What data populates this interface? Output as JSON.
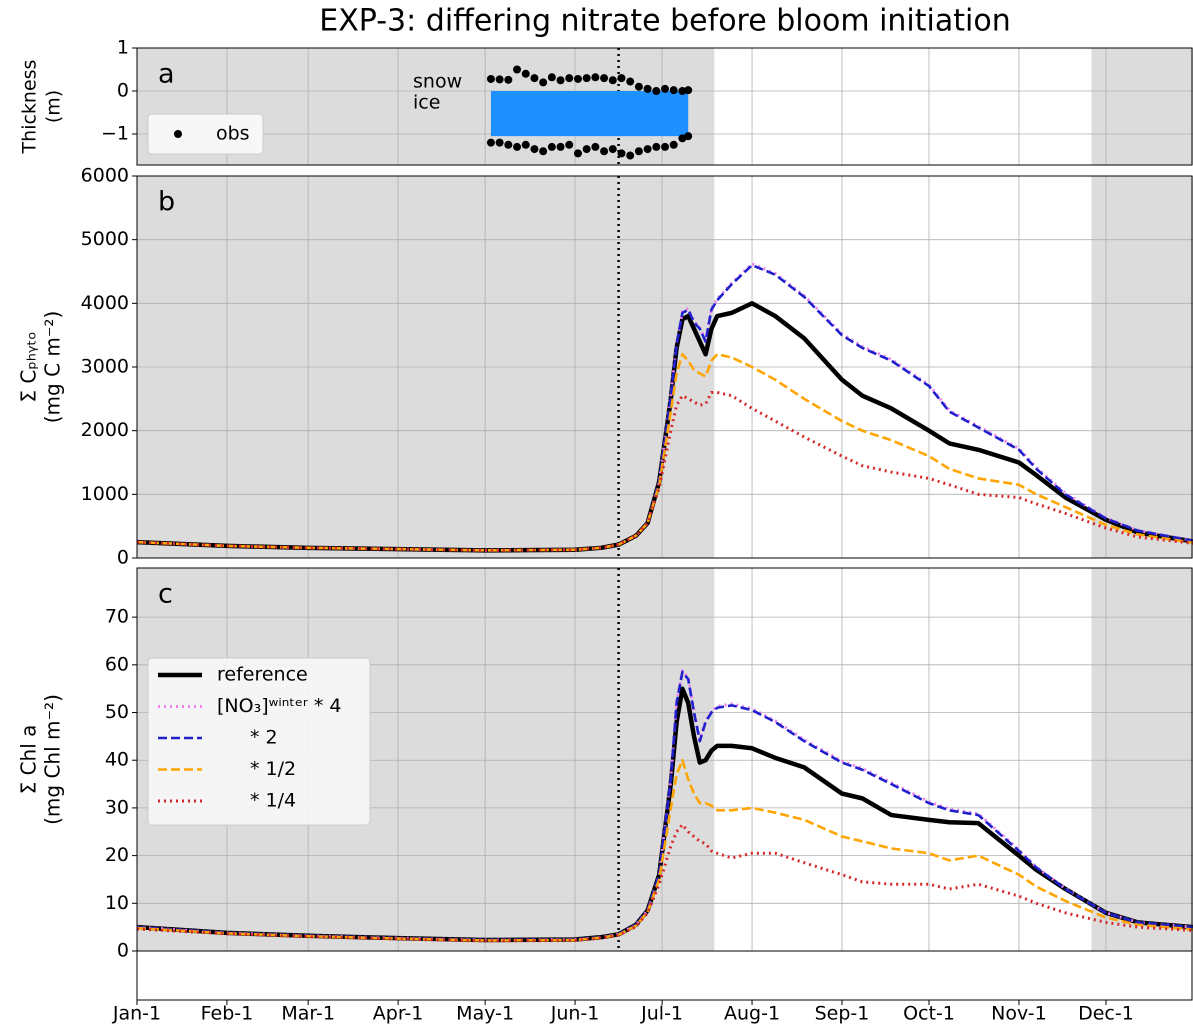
{
  "title": "EXP-3: differing nitrate before bloom initiation",
  "chart_data": [
    {
      "type": "scatter",
      "panel_label": "a",
      "ylabel": [
        "Thickness",
        "(m)"
      ],
      "ylim": [
        -1.72,
        1
      ],
      "yticks": [
        {
          "value": -1,
          "label": "−1"
        },
        0,
        1
      ],
      "grid": true,
      "annotations": [
        "snow",
        "ice"
      ],
      "areas": [
        {
          "name": "ice",
          "color": "#1e90ff",
          "x": [
            122,
            190
          ],
          "values": [
            -1.05,
            -1.05
          ]
        }
      ],
      "series": [
        {
          "name": "obs",
          "color": "#000000",
          "x": [
            122,
            125,
            128,
            131,
            134,
            137,
            140,
            143,
            146,
            149,
            152,
            155,
            158,
            161,
            164,
            167,
            170,
            173,
            176,
            179,
            182,
            185,
            188,
            190,
            122,
            125,
            128,
            131,
            134,
            137,
            140,
            143,
            146,
            149,
            152,
            155,
            158,
            161,
            164,
            167,
            170,
            173,
            176,
            179,
            182,
            185,
            188,
            190
          ],
          "values": [
            0.28,
            0.27,
            0.26,
            0.5,
            0.4,
            0.3,
            0.2,
            0.32,
            0.25,
            0.3,
            0.28,
            0.3,
            0.32,
            0.3,
            0.25,
            0.3,
            0.22,
            0.1,
            0.05,
            0.0,
            0.05,
            0.02,
            0.0,
            0.02,
            -1.2,
            -1.2,
            -1.25,
            -1.3,
            -1.25,
            -1.35,
            -1.4,
            -1.3,
            -1.3,
            -1.25,
            -1.45,
            -1.35,
            -1.3,
            -1.4,
            -1.35,
            -1.45,
            -1.5,
            -1.4,
            -1.35,
            -1.3,
            -1.3,
            -1.25,
            -1.1,
            -1.05
          ]
        }
      ],
      "legend": "lower left"
    },
    {
      "type": "line",
      "panel_label": "b",
      "ylabel": [
        "Σ Cₚₕᵧₜₒ",
        "(mg C m⁻²)"
      ],
      "ylim": [
        0,
        6000
      ],
      "yticks": [
        0,
        1000,
        2000,
        3000,
        4000,
        5000,
        6000
      ],
      "grid": true,
      "x": [
        0,
        31,
        59,
        90,
        120,
        151,
        160,
        166,
        172,
        176,
        180,
        184,
        186,
        188,
        190,
        192,
        194,
        196,
        198,
        200,
        205,
        212,
        220,
        230,
        243,
        250,
        260,
        273,
        280,
        290,
        304,
        310,
        320,
        334,
        345,
        364
      ],
      "series": [
        {
          "name": "reference",
          "color": "#000000",
          "linestyle": "solid",
          "values": [
            250,
            190,
            160,
            140,
            120,
            130,
            160,
            210,
            350,
            550,
            1200,
            2500,
            3300,
            3750,
            3800,
            3600,
            3400,
            3200,
            3600,
            3800,
            3850,
            4000,
            3800,
            3450,
            2800,
            2550,
            2350,
            2000,
            1800,
            1700,
            1500,
            1300,
            950,
            600,
            400,
            260
          ]
        },
        {
          "name": "[NO₃]ʷⁱⁿᵗᵉʳ * 4",
          "color": "#ee82ee",
          "linestyle": "dotted",
          "values": [
            250,
            190,
            160,
            140,
            120,
            130,
            160,
            210,
            350,
            550,
            1200,
            2550,
            3370,
            3870,
            3920,
            3720,
            3620,
            3420,
            3920,
            4070,
            4320,
            4620,
            4470,
            4120,
            3520,
            3320,
            3120,
            2720,
            2320,
            2070,
            1720,
            1420,
            1020,
            630,
            435,
            272
          ]
        },
        {
          "name": "* 2",
          "color": "#1f1fcc",
          "linestyle": "dashed",
          "values": [
            250,
            190,
            160,
            140,
            120,
            130,
            160,
            210,
            350,
            550,
            1200,
            2530,
            3350,
            3850,
            3900,
            3700,
            3600,
            3400,
            3900,
            4050,
            4300,
            4600,
            4450,
            4100,
            3500,
            3300,
            3100,
            2700,
            2300,
            2050,
            1700,
            1400,
            1000,
            620,
            430,
            270
          ]
        },
        {
          "name": "* 1/2",
          "color": "#ffa500",
          "linestyle": "dashed",
          "values": [
            250,
            190,
            160,
            140,
            120,
            130,
            160,
            210,
            350,
            550,
            1150,
            2300,
            2900,
            3200,
            3100,
            2950,
            2900,
            2850,
            3100,
            3200,
            3150,
            3000,
            2800,
            2500,
            2150,
            2000,
            1850,
            1600,
            1400,
            1250,
            1150,
            1000,
            800,
            520,
            370,
            240
          ]
        },
        {
          "name": "* 1/4",
          "color": "#d62728",
          "linestyle": "dotted",
          "values": [
            250,
            190,
            160,
            140,
            120,
            130,
            160,
            210,
            350,
            550,
            1100,
            2000,
            2400,
            2550,
            2500,
            2450,
            2400,
            2420,
            2600,
            2600,
            2550,
            2350,
            2150,
            1900,
            1600,
            1450,
            1350,
            1250,
            1150,
            1000,
            950,
            850,
            700,
            470,
            330,
            230
          ]
        }
      ]
    },
    {
      "type": "line",
      "panel_label": "c",
      "ylabel": [
        "Σ Chl a",
        "(mg Chl m⁻²)"
      ],
      "ylim": [
        0,
        80.3
      ],
      "yticks": [
        0,
        10,
        20,
        30,
        40,
        50,
        60,
        70
      ],
      "grid": true,
      "xlim": [
        0,
        364
      ],
      "xticks": [
        {
          "value": 0,
          "label": "Jan-1"
        },
        {
          "value": 31,
          "label": "Feb-1"
        },
        {
          "value": 59,
          "label": "Mar-1"
        },
        {
          "value": 90,
          "label": "Apr-1"
        },
        {
          "value": 120,
          "label": "May-1"
        },
        {
          "value": 151,
          "label": "Jun-1"
        },
        {
          "value": 181,
          "label": "Jul-1"
        },
        {
          "value": 212,
          "label": "Aug-1"
        },
        {
          "value": 243,
          "label": "Sep-1"
        },
        {
          "value": 273,
          "label": "Oct-1"
        },
        {
          "value": 304,
          "label": "Nov-1"
        },
        {
          "value": 334,
          "label": "Dec-1"
        }
      ],
      "shaded_spans": [
        [
          0,
          199
        ],
        [
          329,
          364
        ]
      ],
      "event_day": 166,
      "legend": "upper left",
      "x": [
        0,
        31,
        59,
        90,
        120,
        151,
        160,
        166,
        172,
        176,
        180,
        184,
        186,
        188,
        190,
        192,
        194,
        196,
        198,
        200,
        205,
        212,
        220,
        230,
        243,
        250,
        260,
        273,
        280,
        290,
        304,
        310,
        320,
        334,
        345,
        364
      ],
      "series": [
        {
          "name": "reference",
          "color": "#000000",
          "linestyle": "solid",
          "values": [
            5,
            3.8,
            3.2,
            2.7,
            2.3,
            2.4,
            2.9,
            3.5,
            5.5,
            8.5,
            16,
            35,
            48,
            55,
            52,
            45,
            39.5,
            40,
            42,
            43,
            43,
            42.5,
            40.5,
            38.5,
            33,
            32,
            28.5,
            27.5,
            27,
            26.8,
            20,
            17,
            13,
            8,
            6,
            5
          ]
        },
        {
          "name": "[NO₃]ʷⁱⁿᵗᵉʳ * 4",
          "color": "#ee82ee",
          "linestyle": "dotted",
          "values": [
            5,
            3.8,
            3.2,
            2.7,
            2.3,
            2.4,
            2.9,
            3.5,
            5.5,
            8.5,
            16,
            36,
            52.3,
            58.8,
            57.3,
            50.3,
            44.3,
            48.3,
            50.3,
            51.3,
            51.8,
            50.8,
            48.3,
            44.3,
            39.8,
            38.3,
            35.3,
            31.3,
            29.8,
            28.8,
            21.2,
            17.6,
            13.1,
            8,
            6,
            5
          ]
        },
        {
          "name": "* 2",
          "color": "#1f1fcc",
          "linestyle": "dashed",
          "values": [
            5,
            3.8,
            3.2,
            2.7,
            2.3,
            2.4,
            2.9,
            3.5,
            5.5,
            8.5,
            16,
            36,
            52,
            58.5,
            57,
            50,
            44,
            48,
            50,
            51,
            51.5,
            50.5,
            48,
            44,
            39.5,
            38,
            35,
            31,
            29.5,
            28.5,
            21,
            17.5,
            13,
            8,
            6,
            5
          ]
        },
        {
          "name": "* 1/2",
          "color": "#ffa500",
          "linestyle": "dashed",
          "values": [
            4.8,
            3.7,
            3.1,
            2.6,
            2.2,
            2.3,
            2.8,
            3.4,
            5.3,
            8.2,
            15,
            30,
            37,
            40,
            36,
            33,
            31,
            31,
            30.5,
            29.5,
            29.5,
            30,
            29,
            27.5,
            24,
            23,
            21.5,
            20.5,
            19,
            20,
            16,
            13.5,
            10.5,
            7,
            5.5,
            4.5
          ]
        },
        {
          "name": "* 1/4",
          "color": "#d62728",
          "linestyle": "dotted",
          "values": [
            4.6,
            3.6,
            3,
            2.5,
            2.1,
            2.2,
            2.7,
            3.3,
            5.1,
            8,
            14,
            22,
            25,
            26.5,
            25,
            24,
            23,
            22.5,
            21,
            20.5,
            19.5,
            20.5,
            20.5,
            18.5,
            16,
            14.5,
            14,
            14,
            13,
            14,
            11.5,
            10,
            8,
            6,
            5,
            4.3
          ]
        }
      ]
    }
  ]
}
